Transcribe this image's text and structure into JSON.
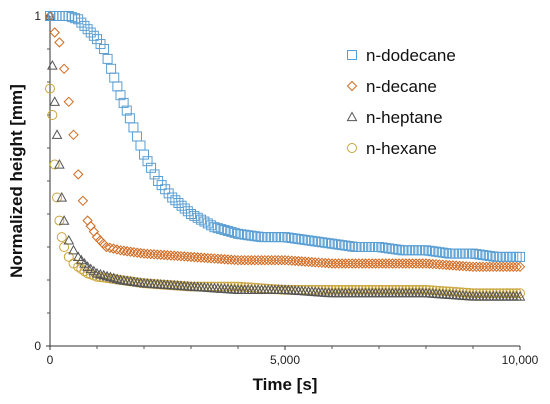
{
  "chart_data": {
    "type": "scatter",
    "title": "",
    "xlabel": "Time [s]",
    "ylabel": "Normalized height [mm]",
    "xlim": [
      0,
      10000
    ],
    "ylim": [
      0,
      1
    ],
    "x_ticks": [
      0,
      5000,
      10000
    ],
    "x_tick_labels": [
      "0",
      "5,000",
      "10,000"
    ],
    "y_ticks": [
      0,
      1
    ],
    "y_tick_labels": [
      "0",
      "1"
    ],
    "grid": false,
    "legend_position": "top-right",
    "series": [
      {
        "name": "n-dodecane",
        "marker": "square",
        "color": "#5a9fd4",
        "points": [
          [
            0,
            1.0
          ],
          [
            200,
            1.0
          ],
          [
            400,
            1.0
          ],
          [
            600,
            0.99
          ],
          [
            800,
            0.96
          ],
          [
            1000,
            0.93
          ],
          [
            1150,
            0.9
          ],
          [
            1300,
            0.84
          ],
          [
            1500,
            0.76
          ],
          [
            1700,
            0.69
          ],
          [
            2000,
            0.58
          ],
          [
            2300,
            0.5
          ],
          [
            2600,
            0.45
          ],
          [
            3000,
            0.4
          ],
          [
            3500,
            0.36
          ],
          [
            4000,
            0.34
          ],
          [
            4500,
            0.33
          ],
          [
            5000,
            0.33
          ],
          [
            5500,
            0.32
          ],
          [
            6000,
            0.31
          ],
          [
            6500,
            0.3
          ],
          [
            7000,
            0.3
          ],
          [
            7500,
            0.29
          ],
          [
            8000,
            0.29
          ],
          [
            8500,
            0.28
          ],
          [
            9000,
            0.28
          ],
          [
            9500,
            0.27
          ],
          [
            10000,
            0.27
          ]
        ]
      },
      {
        "name": "n-decane",
        "marker": "diamond",
        "color": "#d2691e",
        "points": [
          [
            0,
            1.0
          ],
          [
            100,
            0.95
          ],
          [
            200,
            0.92
          ],
          [
            300,
            0.84
          ],
          [
            400,
            0.74
          ],
          [
            500,
            0.64
          ],
          [
            600,
            0.52
          ],
          [
            700,
            0.44
          ],
          [
            800,
            0.38
          ],
          [
            1000,
            0.33
          ],
          [
            1200,
            0.3
          ],
          [
            1500,
            0.29
          ],
          [
            2000,
            0.28
          ],
          [
            3000,
            0.27
          ],
          [
            4000,
            0.26
          ],
          [
            5000,
            0.26
          ],
          [
            6000,
            0.25
          ],
          [
            7000,
            0.25
          ],
          [
            8000,
            0.25
          ],
          [
            9000,
            0.24
          ],
          [
            10000,
            0.24
          ]
        ]
      },
      {
        "name": "n-heptane",
        "marker": "triangle",
        "color": "#555555",
        "points": [
          [
            0,
            1.0
          ],
          [
            50,
            0.85
          ],
          [
            100,
            0.74
          ],
          [
            150,
            0.64
          ],
          [
            200,
            0.55
          ],
          [
            250,
            0.45
          ],
          [
            300,
            0.38
          ],
          [
            400,
            0.32
          ],
          [
            500,
            0.29
          ],
          [
            600,
            0.27
          ],
          [
            800,
            0.24
          ],
          [
            1000,
            0.22
          ],
          [
            1500,
            0.2
          ],
          [
            2000,
            0.19
          ],
          [
            3000,
            0.18
          ],
          [
            4000,
            0.17
          ],
          [
            5000,
            0.17
          ],
          [
            6000,
            0.16
          ],
          [
            7000,
            0.16
          ],
          [
            8000,
            0.16
          ],
          [
            9000,
            0.15
          ],
          [
            10000,
            0.15
          ]
        ]
      },
      {
        "name": "n-hexane",
        "marker": "circle",
        "color": "#c9a43a",
        "points": [
          [
            0,
            0.78
          ],
          [
            50,
            0.7
          ],
          [
            100,
            0.55
          ],
          [
            150,
            0.45
          ],
          [
            200,
            0.38
          ],
          [
            250,
            0.33
          ],
          [
            300,
            0.3
          ],
          [
            400,
            0.27
          ],
          [
            500,
            0.25
          ],
          [
            600,
            0.24
          ],
          [
            800,
            0.22
          ],
          [
            1000,
            0.21
          ],
          [
            1500,
            0.2
          ],
          [
            2000,
            0.19
          ],
          [
            3000,
            0.18
          ],
          [
            4000,
            0.18
          ],
          [
            5000,
            0.17
          ],
          [
            6000,
            0.17
          ],
          [
            7000,
            0.17
          ],
          [
            8000,
            0.17
          ],
          [
            9000,
            0.16
          ],
          [
            10000,
            0.16
          ]
        ]
      }
    ]
  }
}
